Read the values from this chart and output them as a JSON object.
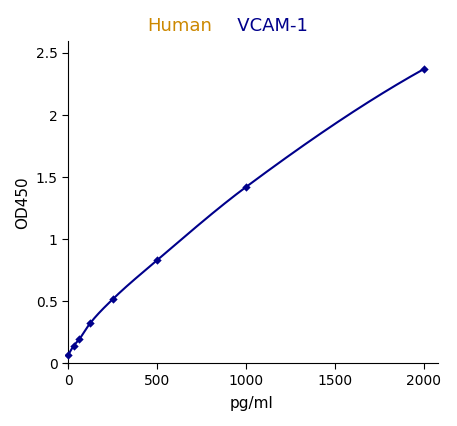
{
  "title_part1": "Human",
  "title_part2": "   VCAM-1",
  "title_color1": "#CC8800",
  "title_color2": "#00008B",
  "xlabel": "pg/ml",
  "ylabel": "OD450",
  "x_data": [
    0,
    31,
    63,
    125,
    250,
    500,
    1000,
    2000
  ],
  "y_data": [
    0.065,
    0.14,
    0.195,
    0.325,
    0.515,
    0.83,
    1.42,
    2.37
  ],
  "line_color": "#00008B",
  "marker_color": "#00008B",
  "xlim": [
    -20,
    2080
  ],
  "ylim": [
    -0.02,
    2.6
  ],
  "xticks": [
    0,
    500,
    1000,
    1500,
    2000
  ],
  "yticks": [
    0,
    0.5,
    1.0,
    1.5,
    2.0,
    2.5
  ],
  "figsize": [
    4.57,
    4.26
  ],
  "dpi": 100,
  "title_fontsize": 13,
  "axis_label_fontsize": 11,
  "tick_fontsize": 10
}
